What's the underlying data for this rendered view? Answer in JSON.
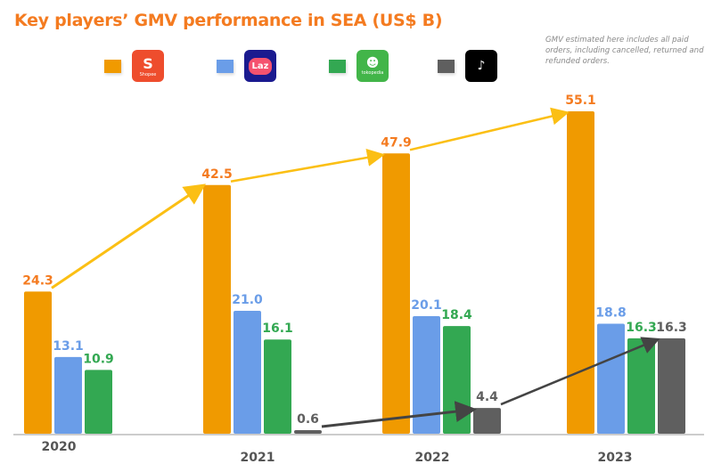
{
  "chart_data": {
    "type": "bar",
    "title": "Key players’ GMV performance in SEA (US$ B)",
    "note": "GMV estimated here includes all paid orders, including cancelled, returned and refunded orders.",
    "xlabel": "",
    "ylabel": "",
    "categories": [
      "2020",
      "2021",
      "2022",
      "2023"
    ],
    "series": [
      {
        "name": "Shopee",
        "color": "#f09a00",
        "label_color": "#f47b20",
        "values": [
          24.3,
          42.5,
          47.9,
          55.1
        ]
      },
      {
        "name": "Lazada",
        "color": "#6a9de8",
        "label_color": "#6a9de8",
        "values": [
          13.1,
          21.0,
          20.1,
          18.8
        ]
      },
      {
        "name": "Tokopedia",
        "color": "#33a852",
        "label_color": "#33a852",
        "values": [
          10.9,
          16.1,
          18.4,
          16.3
        ]
      },
      {
        "name": "TikTok Shop",
        "color": "#5f5f5f",
        "label_color": "#5f5f5f",
        "values": [
          null,
          0.6,
          4.4,
          16.3
        ]
      }
    ],
    "value_labels": [
      [
        "24.3",
        "42.5",
        "47.9",
        "55.1"
      ],
      [
        "13.1",
        "21.0",
        "20.1",
        "18.8"
      ],
      [
        "10.9",
        "16.1",
        "18.4",
        "16.3"
      ],
      [
        "",
        "0.6",
        "4.4",
        "16.3"
      ]
    ],
    "trend_arrows": [
      {
        "series": "Shopee",
        "color": "#fbbf14"
      },
      {
        "series": "TikTok Shop",
        "color": "#444444"
      }
    ],
    "ylim": [
      0,
      58
    ],
    "grid": false,
    "legend": "top"
  },
  "legend": [
    {
      "name": "Shopee",
      "icon": "shopee-logo-icon",
      "glyph": "S",
      "caption": "Shopee",
      "bg": "#ee4d2d"
    },
    {
      "name": "Lazada",
      "icon": "lazada-logo-icon",
      "glyph": "Laz",
      "caption": "",
      "bg": "#1a1a8f"
    },
    {
      "name": "Tokopedia",
      "icon": "tokopedia-logo-icon",
      "glyph": "☻",
      "caption": "tokopedia",
      "bg": "#42b549"
    },
    {
      "name": "TikTok Shop",
      "icon": "tiktok-shop-logo-icon",
      "glyph": "♪",
      "caption": "",
      "bg": "#000000"
    }
  ]
}
